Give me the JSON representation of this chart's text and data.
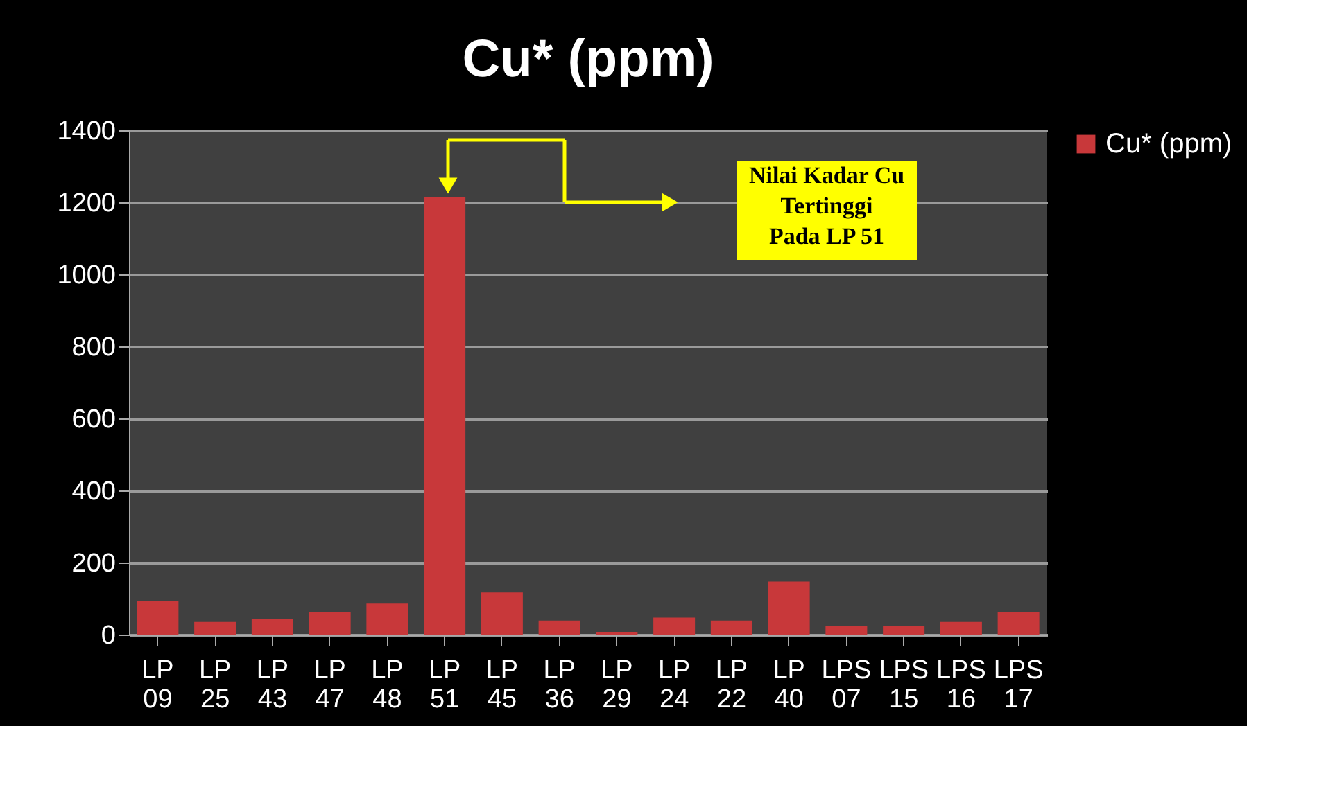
{
  "chart_data": {
    "type": "bar",
    "title": "Cu* (ppm)",
    "categories": [
      "LP 09",
      "LP 25",
      "LP 43",
      "LP 47",
      "LP 48",
      "LP 51",
      "LP 45",
      "LP 36",
      "LP 29",
      "LP 24",
      "LP 22",
      "LP 40",
      "LPS 07",
      "LPS 15",
      "LPS 16",
      "LPS 17"
    ],
    "series": [
      {
        "name": "Cu* (ppm)",
        "color": "#c8383a",
        "values": [
          93,
          35,
          44,
          63,
          86,
          1215,
          117,
          39,
          7,
          47,
          39,
          147,
          24,
          24,
          35,
          63
        ]
      }
    ],
    "ylim": [
      0,
      1400
    ],
    "yticks": [
      0,
      200,
      400,
      600,
      800,
      1000,
      1200,
      1400
    ],
    "grid": "y",
    "legend": "right",
    "annotations": [
      "Nilai Kadar Cu\nTertinggi\nPada LP 51"
    ]
  }
}
